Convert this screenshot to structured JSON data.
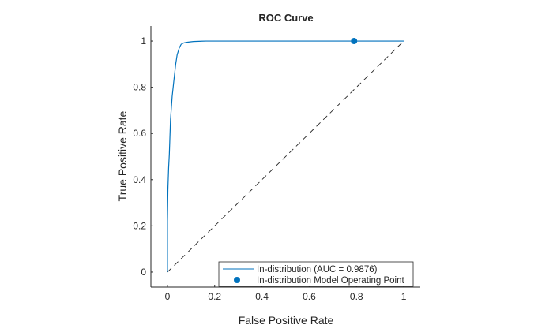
{
  "chart_data": {
    "type": "line",
    "title": "ROC Curve",
    "xlabel": "False Positive Rate",
    "ylabel": "True Positive Rate",
    "xlim": [
      -0.07,
      1.07
    ],
    "ylim": [
      -0.065,
      1.065
    ],
    "xticks": [
      "0",
      "0.2",
      "0.4",
      "0.6",
      "0.8",
      "1"
    ],
    "yticks": [
      "0",
      "0.2",
      "0.4",
      "0.6",
      "0.8",
      "1"
    ],
    "grid": false,
    "legend_position": "bottom-right",
    "series": [
      {
        "name": "In-distribution (AUC = 0.9876)",
        "color": "#0072BD",
        "x": [
          0,
          0,
          0.002,
          0.005,
          0.008,
          0.013,
          0.02,
          0.028,
          0.035,
          0.041,
          0.05,
          0.058,
          0.07,
          0.085,
          0.11,
          0.163,
          0.3,
          0.6,
          1
        ],
        "y": [
          0,
          0.22,
          0.36,
          0.45,
          0.51,
          0.66,
          0.76,
          0.836,
          0.9,
          0.94,
          0.97,
          0.986,
          0.992,
          0.995,
          0.998,
          1.0,
          1.0,
          1.0,
          1.0
        ]
      },
      {
        "name": "In-distribution Model Operating Point",
        "type": "scatter",
        "color": "#0072BD",
        "x": [
          0.79
        ],
        "y": [
          1.0
        ]
      },
      {
        "type": "reference-line",
        "style": "dashed",
        "color": "#262626",
        "x": [
          0,
          1
        ],
        "y": [
          0,
          1
        ]
      }
    ]
  }
}
